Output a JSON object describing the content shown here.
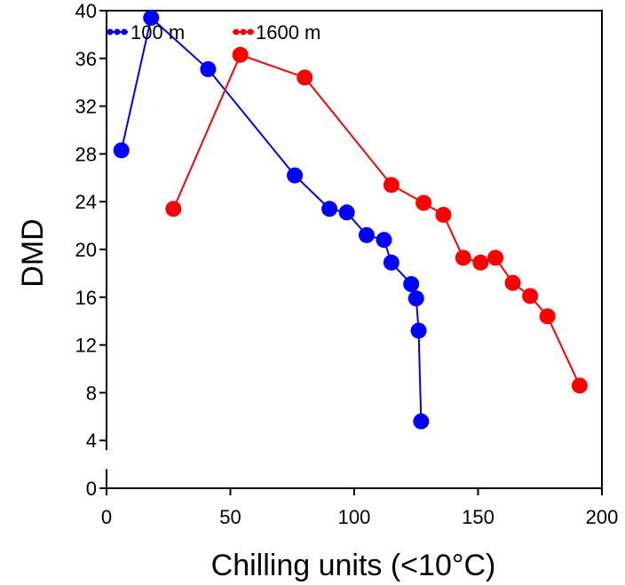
{
  "chart_data": {
    "type": "line",
    "title": "",
    "xlabel": "Chilling units (<10°C)",
    "ylabel": "DMD",
    "xlim": [
      0,
      200
    ],
    "ylim": [
      0,
      40
    ],
    "xticks": [
      0,
      50,
      100,
      150,
      200
    ],
    "yticks": [
      0,
      4,
      8,
      12,
      16,
      20,
      24,
      28,
      32,
      36,
      40
    ],
    "grid": false,
    "legend_placement": "top-left",
    "series": [
      {
        "name": "100 m",
        "color": "#0000ff",
        "x": [
          6,
          18,
          41,
          76,
          90,
          97,
          105,
          112,
          115,
          123,
          125,
          126,
          127
        ],
        "y": [
          28.3,
          39.4,
          35.1,
          26.2,
          23.4,
          23.1,
          21.2,
          20.8,
          18.9,
          17.1,
          15.9,
          13.2,
          5.6
        ]
      },
      {
        "name": "1600 m",
        "color": "#ff0000",
        "x": [
          27,
          54,
          80,
          115,
          128,
          136,
          144,
          151,
          157,
          164,
          171,
          178,
          191
        ],
        "y": [
          23.4,
          36.3,
          34.4,
          25.4,
          23.9,
          22.9,
          19.3,
          18.9,
          19.3,
          17.2,
          16.1,
          14.4,
          8.6
        ]
      }
    ]
  }
}
